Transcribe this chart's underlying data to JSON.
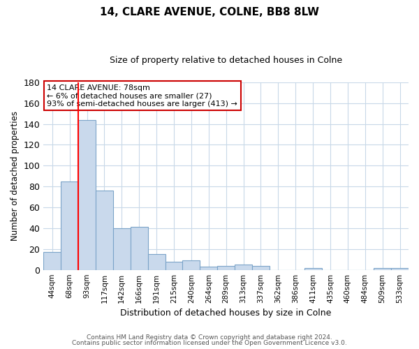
{
  "title": "14, CLARE AVENUE, COLNE, BB8 8LW",
  "subtitle": "Size of property relative to detached houses in Colne",
  "xlabel": "Distribution of detached houses by size in Colne",
  "ylabel": "Number of detached properties",
  "categories": [
    "44sqm",
    "68sqm",
    "93sqm",
    "117sqm",
    "142sqm",
    "166sqm",
    "191sqm",
    "215sqm",
    "240sqm",
    "264sqm",
    "289sqm",
    "313sqm",
    "337sqm",
    "362sqm",
    "386sqm",
    "411sqm",
    "435sqm",
    "460sqm",
    "484sqm",
    "509sqm",
    "533sqm"
  ],
  "values": [
    17,
    85,
    144,
    76,
    40,
    41,
    15,
    8,
    9,
    3,
    4,
    5,
    4,
    0,
    0,
    2,
    0,
    0,
    0,
    2,
    2
  ],
  "bar_color": "#c9d9ec",
  "bar_edge_color": "#7ba3c8",
  "annotation_text": "14 CLARE AVENUE: 78sqm\n← 6% of detached houses are smaller (27)\n93% of semi-detached houses are larger (413) →",
  "annotation_box_color": "#ffffff",
  "annotation_box_edge_color": "#cc0000",
  "ylim": [
    0,
    180
  ],
  "yticks": [
    0,
    20,
    40,
    60,
    80,
    100,
    120,
    140,
    160,
    180
  ],
  "footer_line1": "Contains HM Land Registry data © Crown copyright and database right 2024.",
  "footer_line2": "Contains public sector information licensed under the Open Government Licence v3.0.",
  "background_color": "#ffffff",
  "grid_color": "#c8d8e8",
  "title_fontsize": 11,
  "subtitle_fontsize": 9
}
